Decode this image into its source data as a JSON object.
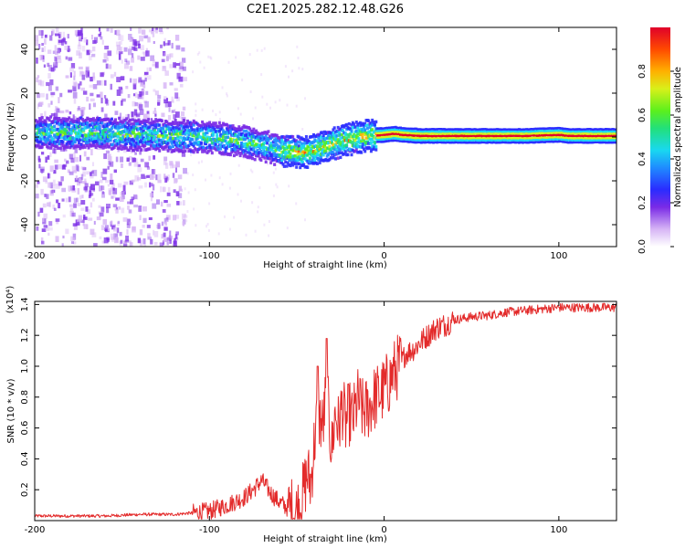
{
  "title": "C2E1.2025.282.12.48.G26",
  "colors": {
    "snr_line": "#e32b2b",
    "background": "#ffffff",
    "axis": "#000000"
  },
  "chart_data": [
    {
      "type": "heatmap",
      "name": "spectrogram",
      "xlabel": "Height of straight line (km)",
      "ylabel": "Frequency (Hz)",
      "xlim": [
        -200,
        133
      ],
      "ylim": [
        -50,
        50
      ],
      "xticks": [
        -200,
        -100,
        0,
        100
      ],
      "xtick_labels": [
        "-200",
        "-100",
        "0",
        "100"
      ],
      "yticks": [
        -40,
        -20,
        0,
        20,
        40
      ],
      "ytick_labels": [
        "-40",
        "-20",
        "0",
        "20",
        "40"
      ],
      "colorbar": {
        "label": "Normalized spectral amplitude",
        "range": [
          0,
          1
        ],
        "ticks": [
          0.0,
          0.2,
          0.4,
          0.6,
          0.8
        ],
        "tick_labels": [
          "0.0",
          "0.2",
          "0.4",
          "0.6",
          "0.8"
        ]
      },
      "ridge": {
        "x": [
          -200,
          -180,
          -160,
          -140,
          -120,
          -100,
          -90,
          -80,
          -70,
          -60,
          -50,
          -45,
          -40,
          -35,
          -30,
          -25,
          -20,
          -15,
          -10,
          0,
          5,
          10,
          20,
          40,
          60,
          80,
          100,
          105,
          110,
          133
        ],
        "freq": [
          2,
          2,
          1.5,
          1,
          0.5,
          0,
          -1,
          -2,
          -4,
          -6,
          -7,
          -7,
          -6,
          -4,
          -3,
          -2,
          -1,
          0,
          0.5,
          1,
          1.5,
          1,
          0.5,
          0.5,
          0.5,
          0.5,
          1,
          0.5,
          0.5,
          0.5
        ]
      }
    },
    {
      "type": "line",
      "name": "snr",
      "xlabel": "Height of straight line (km)",
      "ylabel": "SNR (10 * v/v)",
      "scale_label": "(x10⁴)",
      "xlim": [
        -200,
        133
      ],
      "ylim": [
        0,
        1.42
      ],
      "xticks": [
        -200,
        -100,
        0,
        100
      ],
      "xtick_labels": [
        "-200",
        "-100",
        "0",
        "100"
      ],
      "yticks": [
        0.2,
        0.4,
        0.6,
        0.8,
        1.0,
        1.2,
        1.4
      ],
      "ytick_labels": [
        "0.2",
        "0.4",
        "0.6",
        "0.8",
        "1.0",
        "1.2",
        "1.4"
      ],
      "x": [
        -200,
        -180,
        -160,
        -140,
        -120,
        -110,
        -100,
        -90,
        -80,
        -75,
        -70,
        -65,
        -60,
        -55,
        -50,
        -47,
        -44,
        -42,
        -40,
        -38,
        -35,
        -33,
        -30,
        -28,
        -26,
        -24,
        -22,
        -20,
        -18,
        -15,
        -12,
        -10,
        -8,
        -5,
        -2,
        0,
        3,
        5,
        8,
        10,
        12,
        15,
        18,
        20,
        25,
        30,
        35,
        40,
        50,
        60,
        70,
        80,
        90,
        100,
        110,
        120,
        133
      ],
      "y": [
        0.03,
        0.03,
        0.03,
        0.04,
        0.04,
        0.05,
        0.06,
        0.1,
        0.15,
        0.2,
        0.26,
        0.18,
        0.12,
        0.08,
        0.06,
        0.14,
        0.3,
        0.24,
        0.5,
        0.7,
        0.6,
        0.85,
        0.45,
        0.7,
        0.6,
        0.75,
        0.62,
        0.7,
        0.65,
        0.78,
        0.7,
        0.72,
        0.75,
        0.8,
        0.82,
        0.85,
        0.9,
        0.95,
        1.0,
        1.02,
        1.08,
        1.1,
        1.12,
        1.15,
        1.2,
        1.25,
        1.27,
        1.3,
        1.32,
        1.33,
        1.35,
        1.36,
        1.37,
        1.38,
        1.38,
        1.38,
        1.38
      ]
    }
  ]
}
